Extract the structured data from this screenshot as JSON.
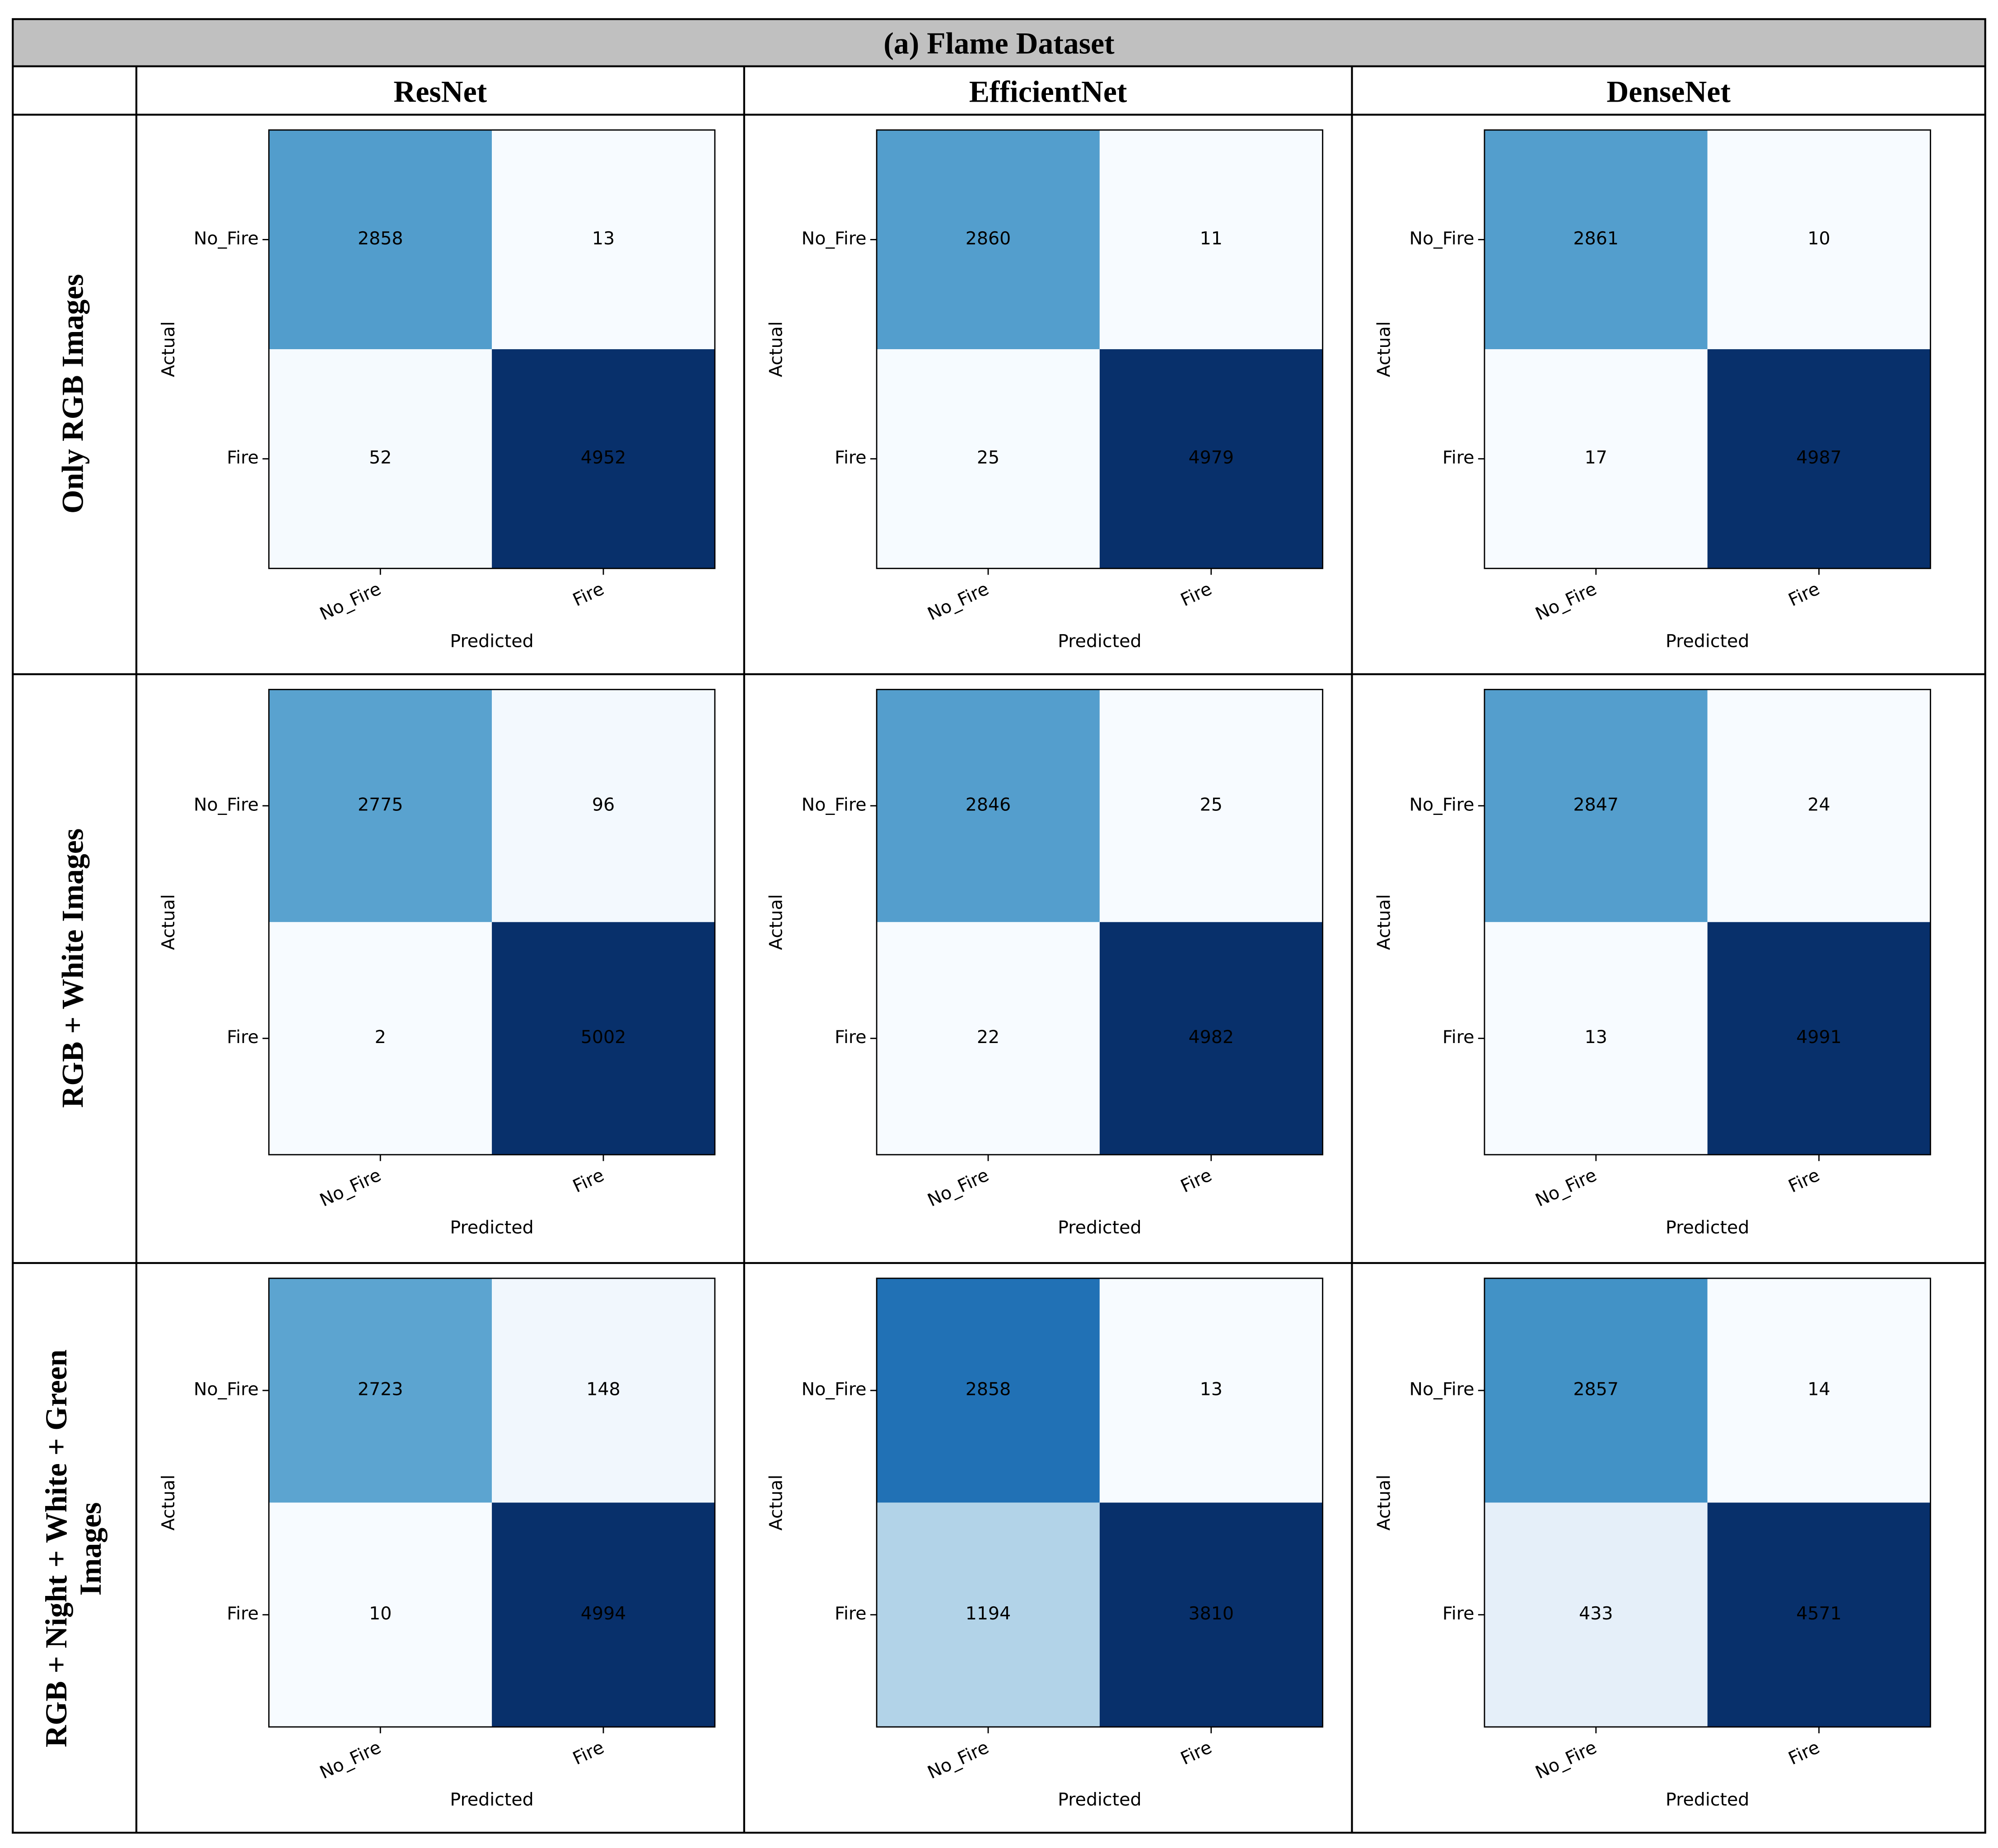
{
  "figure": {
    "title": "(a) Flame Dataset",
    "columns": [
      "ResNet",
      "EfficientNet",
      "DenseNet"
    ],
    "rows": [
      "Only RGB Images",
      "RGB + White Images",
      "RGB + Night + White + Green Images"
    ]
  },
  "chart_data": [
    {
      "type": "heatmap",
      "cmap": "Blues",
      "xlabel": "Predicted",
      "ylabel": "Actual",
      "x_categories": [
        "No_Fire",
        "Fire"
      ],
      "y_categories": [
        "No_Fire",
        "Fire"
      ],
      "values": [
        [
          2858,
          13
        ],
        [
          52,
          4952
        ]
      ]
    },
    {
      "type": "heatmap",
      "cmap": "Blues",
      "xlabel": "Predicted",
      "ylabel": "Actual",
      "x_categories": [
        "No_Fire",
        "Fire"
      ],
      "y_categories": [
        "No_Fire",
        "Fire"
      ],
      "values": [
        [
          2860,
          11
        ],
        [
          25,
          4979
        ]
      ]
    },
    {
      "type": "heatmap",
      "cmap": "Blues",
      "xlabel": "Predicted",
      "ylabel": "Actual",
      "x_categories": [
        "No_Fire",
        "Fire"
      ],
      "y_categories": [
        "No_Fire",
        "Fire"
      ],
      "values": [
        [
          2861,
          10
        ],
        [
          17,
          4987
        ]
      ]
    },
    {
      "type": "heatmap",
      "cmap": "Blues",
      "xlabel": "Predicted",
      "ylabel": "Actual",
      "x_categories": [
        "No_Fire",
        "Fire"
      ],
      "y_categories": [
        "No_Fire",
        "Fire"
      ],
      "values": [
        [
          2775,
          96
        ],
        [
          2,
          5002
        ]
      ]
    },
    {
      "type": "heatmap",
      "cmap": "Blues",
      "xlabel": "Predicted",
      "ylabel": "Actual",
      "x_categories": [
        "No_Fire",
        "Fire"
      ],
      "y_categories": [
        "No_Fire",
        "Fire"
      ],
      "values": [
        [
          2846,
          25
        ],
        [
          22,
          4982
        ]
      ]
    },
    {
      "type": "heatmap",
      "cmap": "Blues",
      "xlabel": "Predicted",
      "ylabel": "Actual",
      "x_categories": [
        "No_Fire",
        "Fire"
      ],
      "y_categories": [
        "No_Fire",
        "Fire"
      ],
      "values": [
        [
          2847,
          24
        ],
        [
          13,
          4991
        ]
      ]
    },
    {
      "type": "heatmap",
      "cmap": "Blues",
      "xlabel": "Predicted",
      "ylabel": "Actual",
      "x_categories": [
        "No_Fire",
        "Fire"
      ],
      "y_categories": [
        "No_Fire",
        "Fire"
      ],
      "values": [
        [
          2723,
          148
        ],
        [
          10,
          4994
        ]
      ]
    },
    {
      "type": "heatmap",
      "cmap": "Blues",
      "xlabel": "Predicted",
      "ylabel": "Actual",
      "x_categories": [
        "No_Fire",
        "Fire"
      ],
      "y_categories": [
        "No_Fire",
        "Fire"
      ],
      "values": [
        [
          2858,
          13
        ],
        [
          1194,
          3810
        ]
      ]
    },
    {
      "type": "heatmap",
      "cmap": "Blues",
      "xlabel": "Predicted",
      "ylabel": "Actual",
      "x_categories": [
        "No_Fire",
        "Fire"
      ],
      "y_categories": [
        "No_Fire",
        "Fire"
      ],
      "values": [
        [
          2857,
          14
        ],
        [
          433,
          4571
        ]
      ]
    }
  ]
}
